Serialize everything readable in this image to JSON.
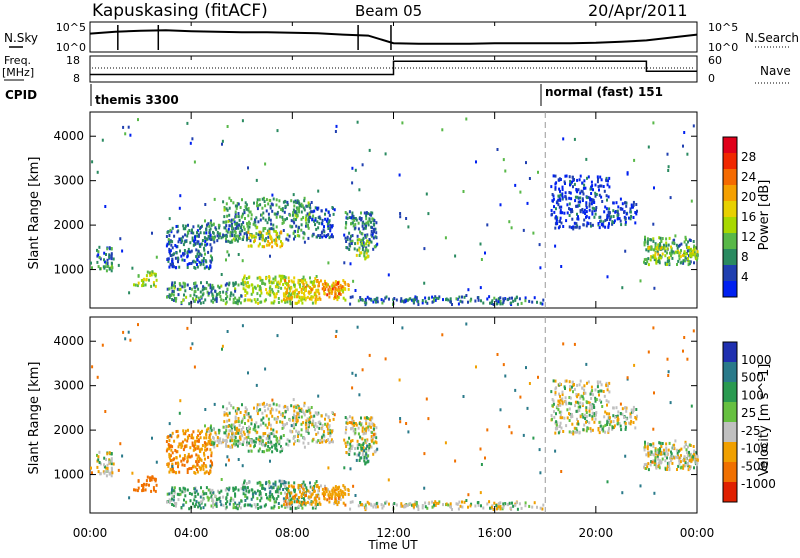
{
  "header": {
    "station": "Kapuskasing (fitACF)",
    "beam": "Beam 05",
    "date": "20/Apr/2011"
  },
  "noise_panel": {
    "left_label": "N.Sky",
    "right_label": "N.Search",
    "left_ticks": [
      "10^5",
      "10^0"
    ],
    "right_ticks": [
      "10^5",
      "10^0"
    ]
  },
  "freq_panel": {
    "left_label_1": "Freq.",
    "left_label_2": "[MHz]",
    "right_label": "Nave",
    "left_ticks": [
      "18",
      "8"
    ],
    "right_ticks": [
      "60",
      "0"
    ]
  },
  "cpid_panel": {
    "label": "CPID",
    "mode_1": "themis 3300",
    "mode_2": "normal (fast) 151"
  },
  "x_axis": {
    "label": "Time UT",
    "ticks": [
      "00:00",
      "04:00",
      "08:00",
      "12:00",
      "16:00",
      "20:00",
      "00:00"
    ]
  },
  "power_panel": {
    "ylabel": "Slant Range [km]",
    "yticks": [
      "4000",
      "3000",
      "2000",
      "1000"
    ],
    "colorbar_label": "Power [dB]",
    "colorbar_ticks": [
      "28",
      "24",
      "20",
      "16",
      "12",
      "8",
      "4"
    ],
    "colors": [
      "#e0001a",
      "#f02800",
      "#f56a00",
      "#f5a000",
      "#e8d000",
      "#a8d800",
      "#58b848",
      "#2a8a60",
      "#2040b0",
      "#0020f0"
    ]
  },
  "velocity_panel": {
    "ylabel": "Slant Range [km]",
    "yticks": [
      "4000",
      "3000",
      "2000",
      "1000"
    ],
    "colorbar_label": "Velocity [m s^-1]",
    "colorbar_ticks": [
      "1000",
      "500",
      "100",
      "25",
      "-25",
      "-100",
      "-500",
      "-1000"
    ],
    "colors": [
      "#2030b0",
      "#2a7a8a",
      "#2a9a50",
      "#66c040",
      "#c0c0c0",
      "#f0a000",
      "#f07000",
      "#e02000"
    ]
  },
  "chart_data": {
    "type": "heatmap",
    "x_range_hours": [
      0,
      24
    ],
    "y_range_km": [
      180,
      4500
    ],
    "mode_change_hour": 18.0,
    "scatter_regions": [
      {
        "t0": 0.0,
        "t1": 0.9,
        "r0": 950,
        "r1": 1150,
        "power": 10,
        "vel": 0
      },
      {
        "t0": 0.2,
        "t1": 0.9,
        "r0": 1150,
        "r1": 1500,
        "power": 7,
        "vel": 0
      },
      {
        "t0": 1.7,
        "t1": 2.6,
        "r0": 600,
        "r1": 950,
        "power": 14,
        "vel": -300
      },
      {
        "t0": 3.0,
        "t1": 4.8,
        "r0": 1000,
        "r1": 2000,
        "power": 6,
        "vel": -100
      },
      {
        "t0": 4.5,
        "t1": 6.2,
        "r0": 1600,
        "r1": 2100,
        "power": 8,
        "vel": 0
      },
      {
        "t0": 5.2,
        "t1": 8.7,
        "r0": 1600,
        "r1": 2600,
        "power": 9,
        "vel": 0
      },
      {
        "t0": 6.2,
        "t1": 7.6,
        "r0": 1500,
        "r1": 1850,
        "power": 16,
        "vel": 50
      },
      {
        "t0": 8.0,
        "t1": 8.8,
        "r0": 2100,
        "r1": 2500,
        "power": 10,
        "vel": 0
      },
      {
        "t0": 8.7,
        "t1": 9.6,
        "r0": 1700,
        "r1": 2400,
        "power": 6,
        "vel": 0
      },
      {
        "t0": 3.0,
        "t1": 6.0,
        "r0": 220,
        "r1": 700,
        "power": 9,
        "vel": 50
      },
      {
        "t0": 6.0,
        "t1": 9.0,
        "r0": 220,
        "r1": 850,
        "power": 14,
        "vel": 60
      },
      {
        "t0": 7.6,
        "t1": 10.2,
        "r0": 300,
        "r1": 750,
        "power": 18,
        "vel": -60
      },
      {
        "t0": 9.2,
        "t1": 9.9,
        "r0": 350,
        "r1": 700,
        "power": 22,
        "vel": -80
      },
      {
        "t0": 10.0,
        "t1": 11.3,
        "r0": 1400,
        "r1": 2300,
        "power": 8,
        "vel": 0
      },
      {
        "t0": 10.5,
        "t1": 11.0,
        "r0": 1200,
        "r1": 1700,
        "power": 14,
        "vel": 80
      },
      {
        "t0": 10.2,
        "t1": 17.9,
        "r0": 200,
        "r1": 380,
        "power": 7,
        "vel": 0
      },
      {
        "t0": 18.2,
        "t1": 20.5,
        "r0": 1900,
        "r1": 3100,
        "power": 4,
        "vel": 0
      },
      {
        "t0": 20.5,
        "t1": 21.6,
        "r0": 2000,
        "r1": 2500,
        "power": 5,
        "vel": 0
      },
      {
        "t0": 21.8,
        "t1": 24.0,
        "r0": 1100,
        "r1": 1750,
        "power": 10,
        "vel": 0
      },
      {
        "t0": 22.0,
        "t1": 24.0,
        "r0": 1250,
        "r1": 1500,
        "power": 15,
        "vel": 0
      }
    ],
    "noise_sky_log": [
      3.2,
      3.6,
      3.8,
      3.9,
      3.7,
      3.6,
      3.5,
      3.5,
      3.4,
      3.3,
      3.0,
      2.8,
      1.2,
      1.1,
      1.1,
      1.1,
      1.2,
      1.2,
      1.2,
      1.2,
      1.3,
      1.5,
      1.8,
      2.4,
      3.0
    ],
    "freq_mhz": [
      10.5,
      10.5,
      10.5,
      10.5,
      10.5,
      10.5,
      10.5,
      10.5,
      10.5,
      10.5,
      10.5,
      10.5,
      16.5,
      16.5,
      16.5,
      16.5,
      16.5,
      16.5,
      16.5,
      16.5,
      16.5,
      16.5,
      12.0,
      12.0,
      12.0
    ]
  }
}
